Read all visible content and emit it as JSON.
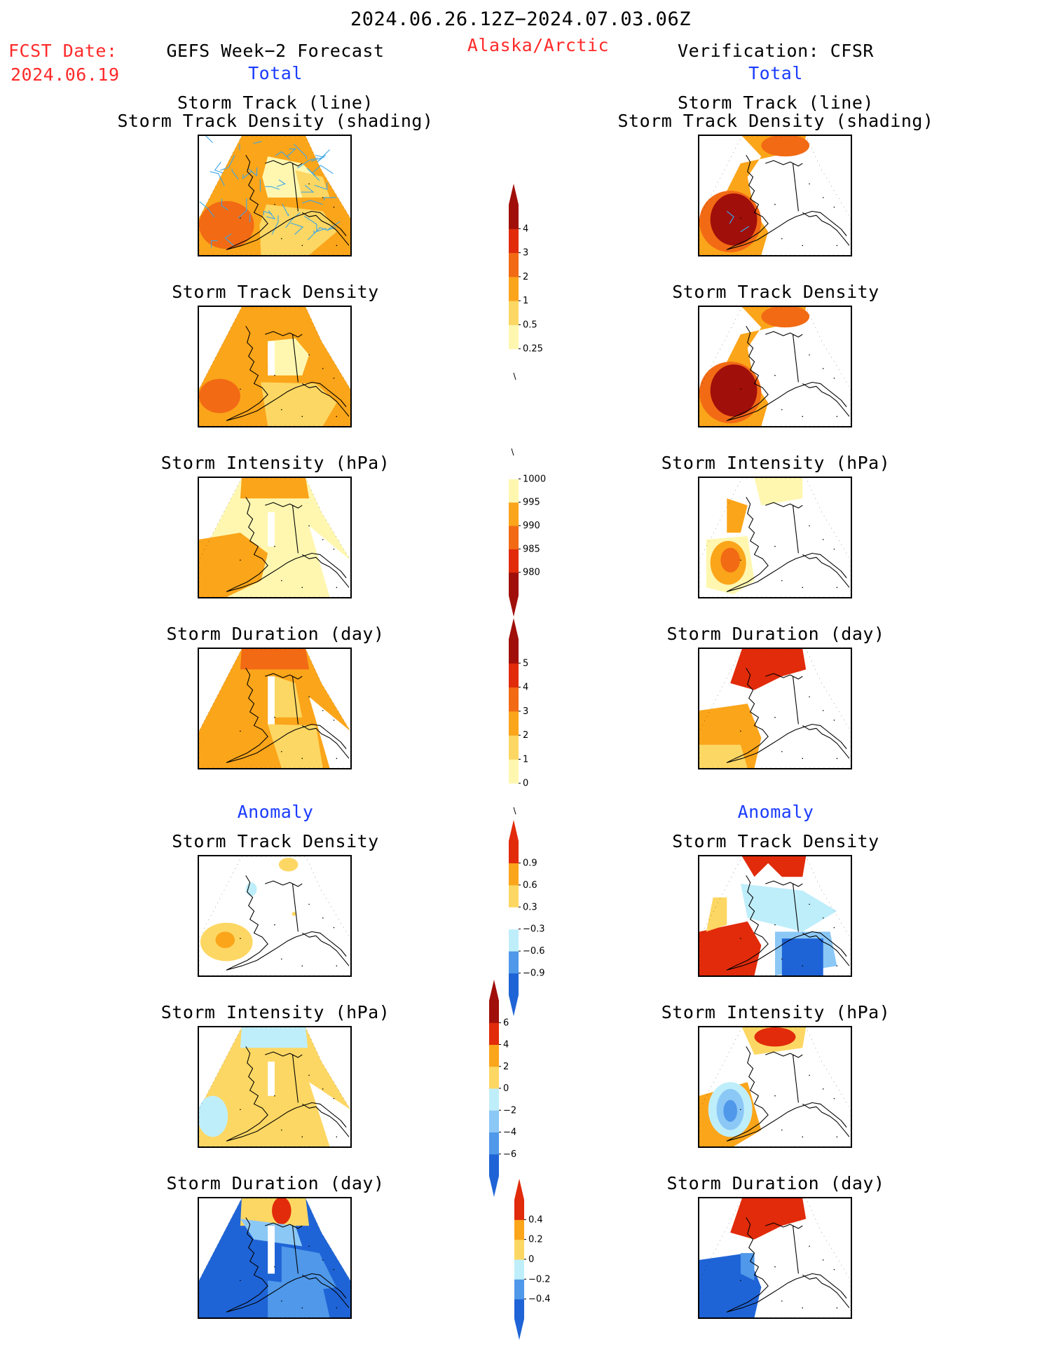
{
  "header": {
    "period": "2024.06.26.12Z−2024.07.03.06Z",
    "fcst_label": "FCST Date:",
    "fcst_date": "2024.06.19",
    "left_title": "GEFS Week−2 Forecast",
    "region": "Alaska/Arctic",
    "right_title": "Verification: CFSR"
  },
  "sections": {
    "total_label": "Total",
    "anomaly_label": "Anomaly"
  },
  "panel_titles": {
    "track_line": "Storm Track (line)",
    "track_shading": "Storm Track Density (shading)",
    "density": "Storm Track Density",
    "intensity": "Storm Intensity (hPa)",
    "duration": "Storm Duration (day)"
  },
  "colorbars": {
    "density": [
      "0.25",
      "0.5",
      "1",
      "2",
      "3",
      "4"
    ],
    "intensity": [
      "1000",
      "995",
      "990",
      "985",
      "980"
    ],
    "duration": [
      "0",
      "1",
      "2",
      "3",
      "4",
      "5"
    ],
    "density_anom": [
      "0.9",
      "0.6",
      "0.3",
      "−0.3",
      "−0.6",
      "−0.9"
    ],
    "intensity_anom": [
      "6",
      "4",
      "2",
      "0",
      "−2",
      "−4",
      "−6"
    ],
    "duration_anom": [
      "0.4",
      "0.2",
      "0",
      "−0.2",
      "−0.4"
    ]
  },
  "colors": {
    "pale_yellow": "#fff7b0",
    "yellow": "#fdd763",
    "orange": "#fba51a",
    "dark_orange": "#f26a14",
    "red": "#e12b0a",
    "dark_red": "#a00f0a",
    "light_blue": "#bfeefb",
    "mid_blue": "#8cc8f6",
    "blue": "#4f98ea",
    "dark_blue": "#1f64d6",
    "track_line": "#3aa6e8"
  }
}
